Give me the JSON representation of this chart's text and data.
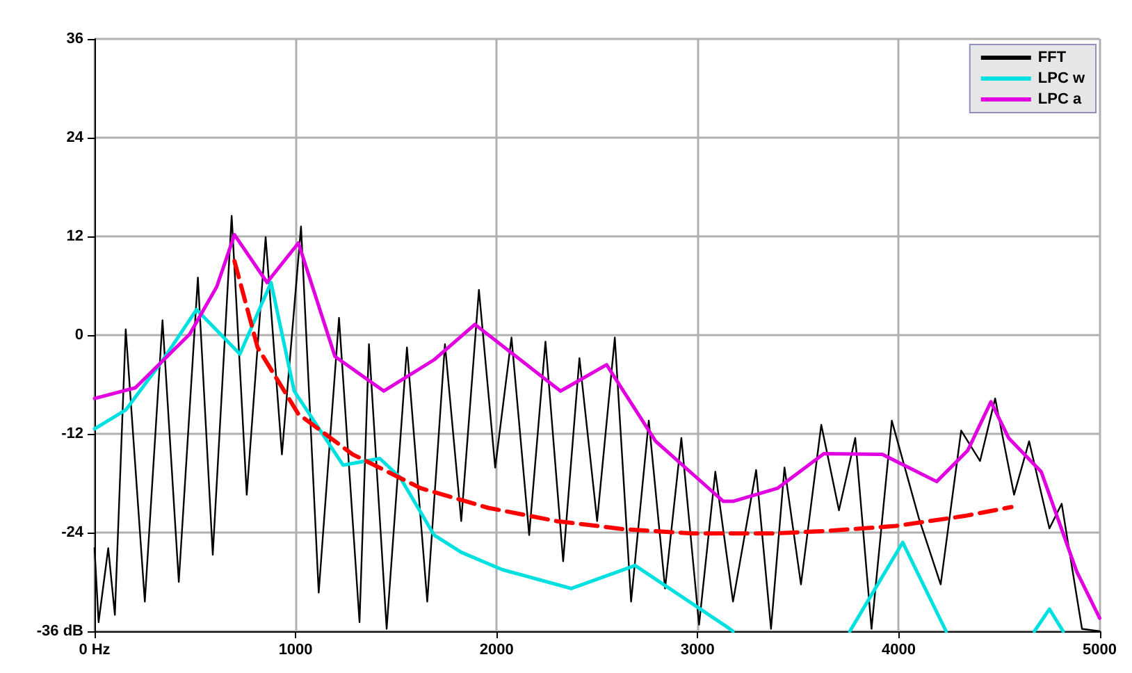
{
  "chart_data": {
    "type": "line",
    "xlim": [
      0,
      5000
    ],
    "ylim": [
      -36,
      36
    ],
    "xticks": [
      {
        "value": 0,
        "label": "0 Hz"
      },
      1000,
      2000,
      3000,
      4000,
      5000
    ],
    "yticks": [
      {
        "value": -36,
        "label": "-36 dB"
      },
      -24,
      -12,
      0,
      12,
      24,
      36
    ],
    "grid": true,
    "legend": "top right",
    "marker": "none",
    "series": [
      {
        "name": "FFT",
        "color": "#000000",
        "x": [
          0,
          20,
          68,
          101,
          155,
          250,
          338,
          419,
          514,
          588,
          682,
          757,
          851,
          932,
          1027,
          1115,
          1216,
          1318,
          1365,
          1453,
          1554,
          1655,
          1743,
          1824,
          1912,
          1993,
          2074,
          2162,
          2243,
          2331,
          2412,
          2500,
          2588,
          2669,
          2757,
          2838,
          2919,
          3007,
          3088,
          3176,
          3291,
          3365,
          3432,
          3514,
          3615,
          3703,
          3784,
          3865,
          3966,
          4101,
          4209,
          4311,
          4405,
          4480,
          4574,
          4649,
          4750,
          4811,
          4912,
          5000
        ],
        "values": [
          -25.9,
          -34.9,
          -25.9,
          -34,
          0.7,
          -32.4,
          1.8,
          -30,
          7,
          -26.7,
          14.5,
          -19.4,
          11.9,
          -14.5,
          13.2,
          -31.3,
          2.1,
          -34.9,
          -1.1,
          -35.7,
          -1.5,
          -32.4,
          -1.1,
          -22.6,
          5.5,
          -16.1,
          -0.3,
          -24.3,
          -0.8,
          -27.5,
          -2.8,
          -22.6,
          -0.3,
          -32.4,
          -10.4,
          -30.8,
          -12.5,
          -35.2,
          -16.6,
          -32.4,
          -16.4,
          -35.7,
          -16.1,
          -30.3,
          -10.9,
          -21.3,
          -12.5,
          -35.7,
          -10.4,
          -22.3,
          -30.3,
          -11.6,
          -15.3,
          -7.7,
          -19.4,
          -12.9,
          -23.5,
          -20.5,
          -35.7,
          -36
        ]
      },
      {
        "name": "LPC w",
        "color": "#00e0e0",
        "x": [
          0,
          155,
          338,
          507,
          723,
          878,
          993,
          1236,
          1419,
          1520,
          1689,
          1824,
          2027,
          2372,
          2689,
          3142,
          3176,
          3649,
          3757,
          4020,
          4236,
          4450,
          4675,
          4750,
          4818
        ],
        "values": [
          -11.4,
          -9.1,
          -3.1,
          3.1,
          -2.3,
          6.4,
          -6.8,
          -15.8,
          -15,
          -17.3,
          -24.3,
          -26.4,
          -28.5,
          -30.8,
          -28,
          -35.4,
          -36,
          null,
          -36,
          -25.2,
          -36,
          null,
          -36,
          -33.3,
          -36
        ]
      },
      {
        "name": "LPC a",
        "color": "#e000e0",
        "x": [
          0,
          203,
          473,
          608,
          696,
          858,
          1014,
          1196,
          1439,
          1689,
          1892,
          2318,
          2547,
          2791,
          3128,
          3176,
          3399,
          3628,
          3919,
          4189,
          4344,
          4459,
          4547,
          4709,
          4885,
          5000
        ],
        "values": [
          -7.7,
          -6.4,
          0.1,
          5.9,
          12.2,
          6.4,
          11.2,
          -2.6,
          -6.8,
          -3,
          1.3,
          -6.8,
          -3.6,
          -12.9,
          -20.2,
          -20.2,
          -18.6,
          -14.4,
          -14.5,
          -17.8,
          -14,
          -8.1,
          -12.5,
          -16.6,
          -28.7,
          -34.4
        ]
      },
      {
        "color": "#ff0000",
        "line_style": "dashed",
        "x": [
          696,
          811,
          1014,
          1284,
          1622,
          1959,
          2297,
          2635,
          2973,
          3378,
          3649,
          3986,
          4324,
          4561
        ],
        "values": [
          9,
          -1.5,
          -9.6,
          -14.5,
          -18.6,
          -21,
          -22.6,
          -23.6,
          -24.1,
          -24.1,
          -23.8,
          -23.2,
          -22,
          -20.9
        ]
      }
    ]
  }
}
